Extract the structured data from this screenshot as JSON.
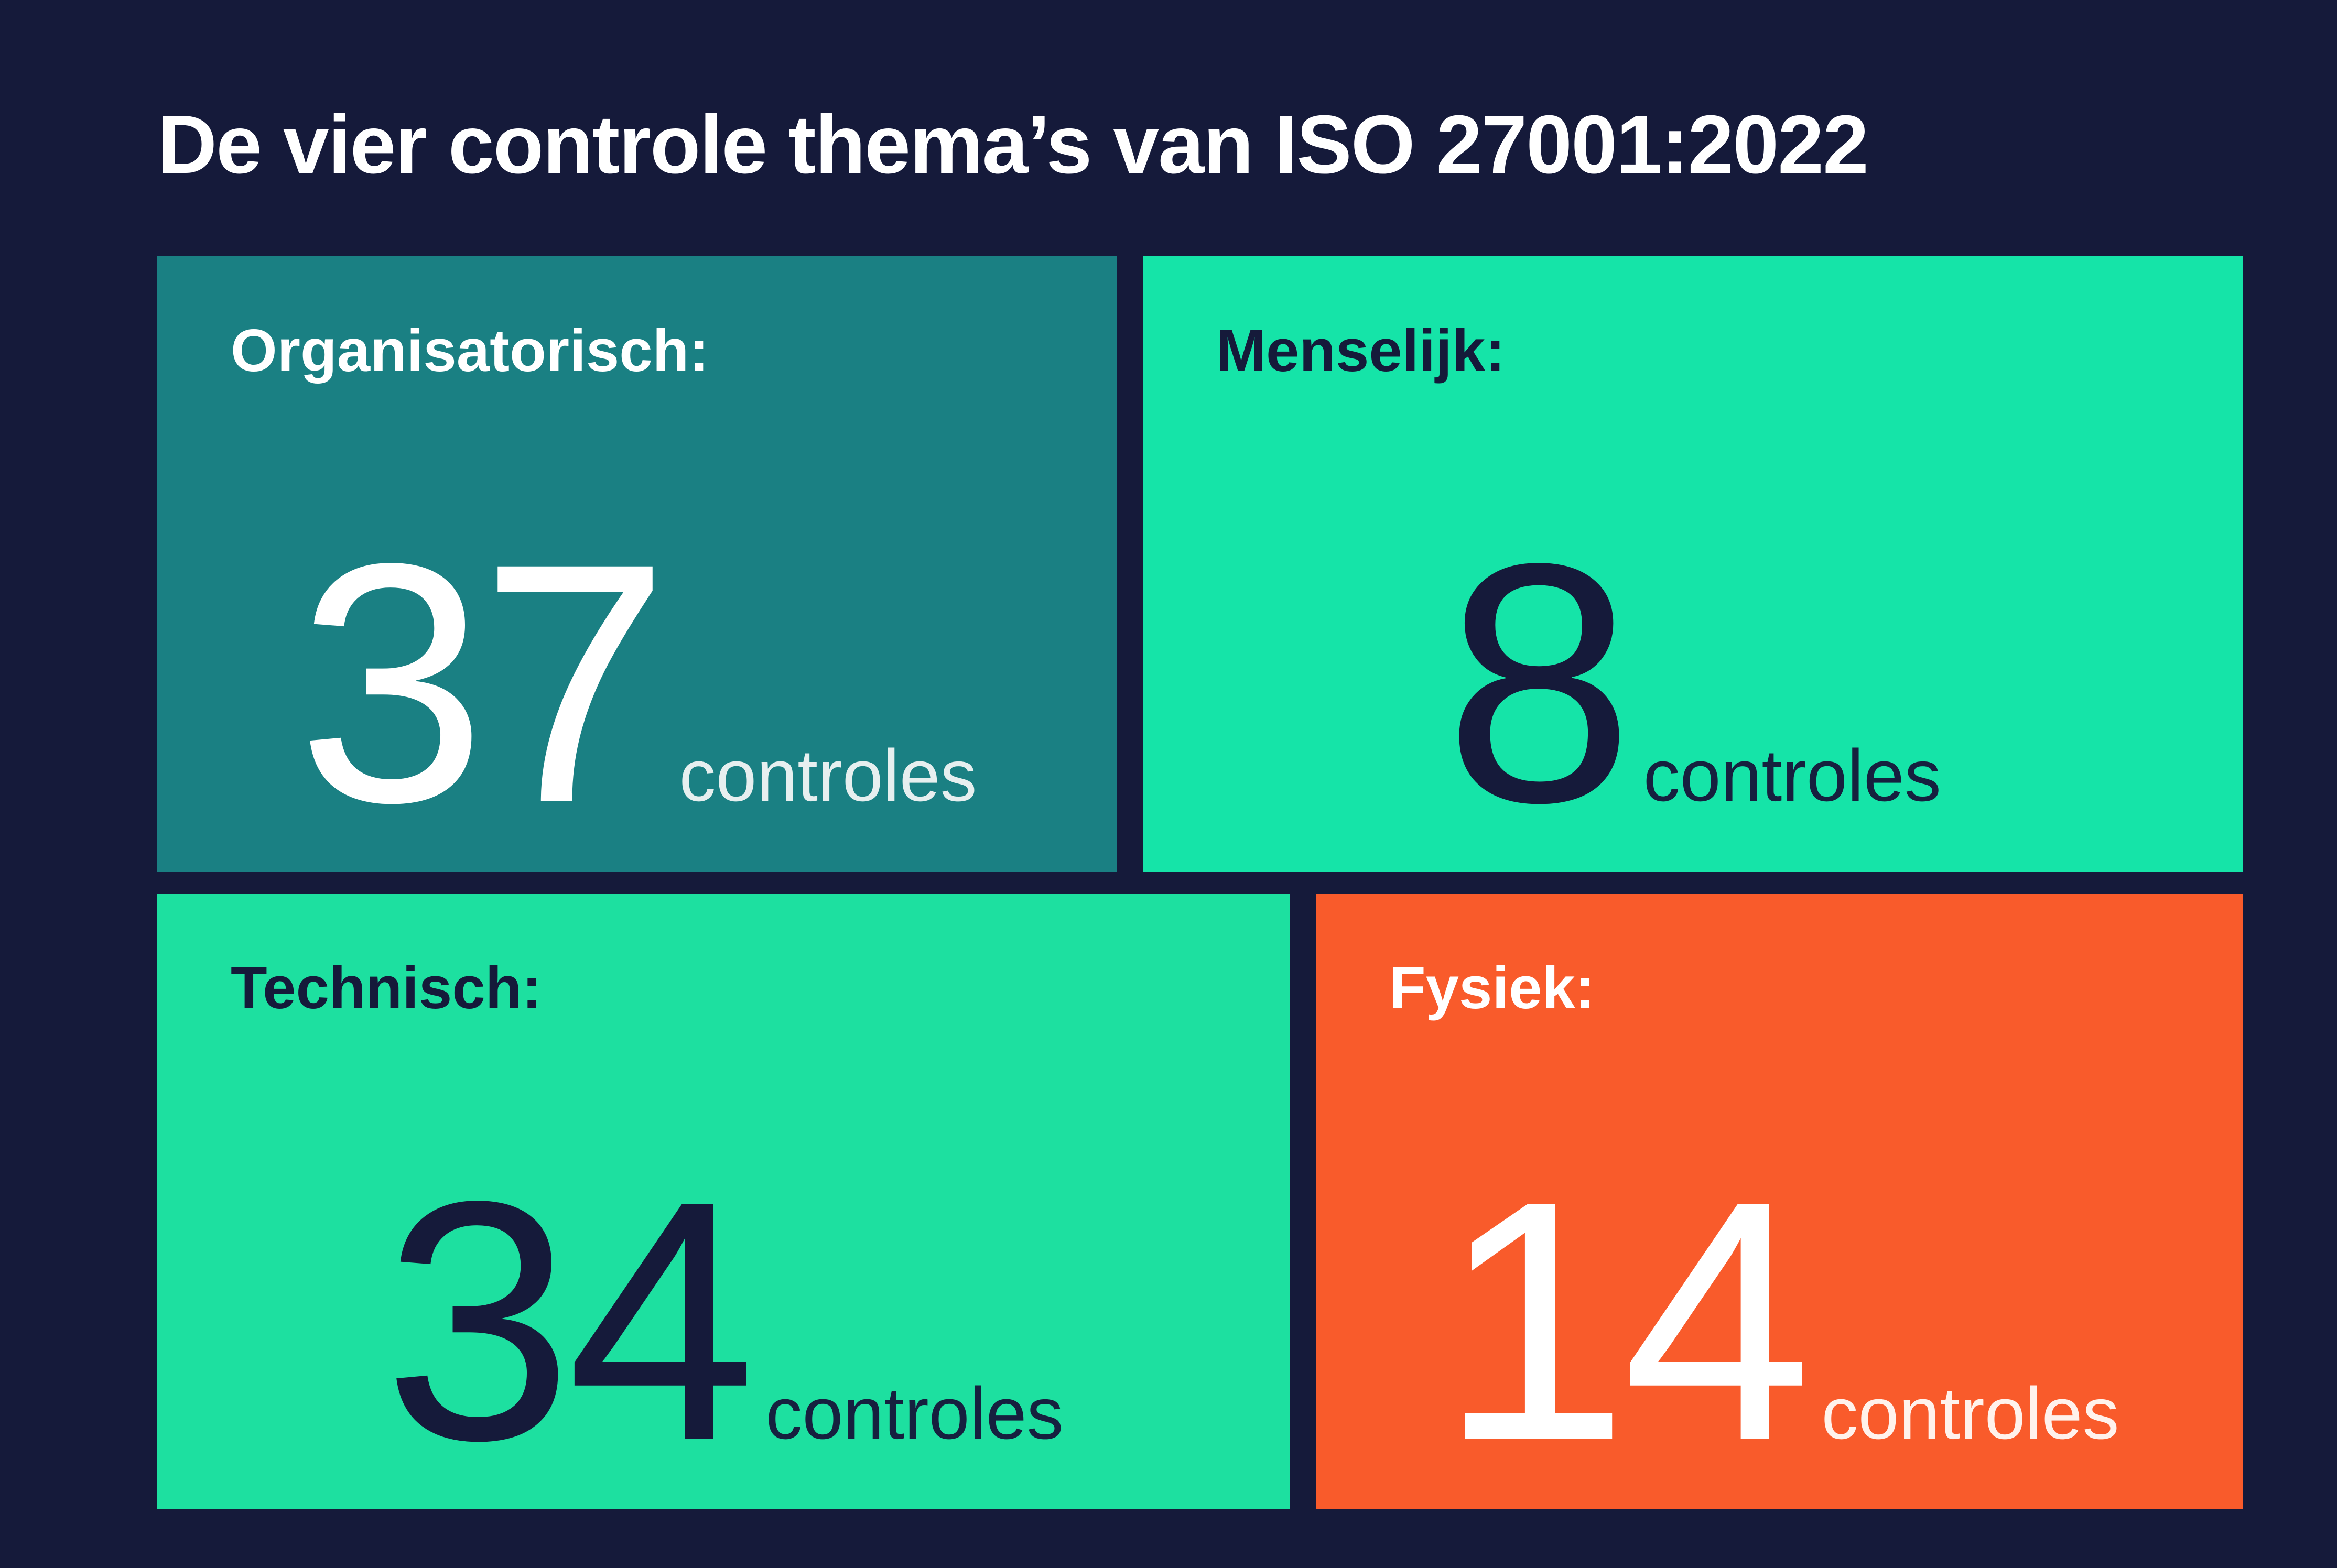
{
  "page": {
    "title": "De vier controle thema’s van ISO 27001:2022",
    "background_color": "#151A3A",
    "title_color": "#FFFFFF"
  },
  "chart_data": {
    "type": "table",
    "title": "De vier controle thema’s van ISO 27001:2022",
    "categories": [
      "Organisatorisch",
      "Menselijk",
      "Technisch",
      "Fysiek"
    ],
    "values": [
      37,
      8,
      34,
      14
    ],
    "unit": "controles",
    "legend_position": "none",
    "layout": "2x2 stat cards"
  },
  "cards": [
    {
      "label": "Organisatorisch:",
      "value": "37",
      "unit": "controles",
      "colors": {
        "bg": "#1A8083",
        "label": "#FFFFFF",
        "value": "#FFFFFF",
        "unit": "#E6EFEF"
      }
    },
    {
      "label": "Menselijk:",
      "value": "8",
      "unit": "controles",
      "colors": {
        "bg": "#15E4A8",
        "label": "#151A3A",
        "value": "#151A3A",
        "unit": "#16203F"
      }
    },
    {
      "label": "Technisch:",
      "value": "34",
      "unit": "controles",
      "colors": {
        "bg": "#1DE0A0",
        "label": "#151A3A",
        "value": "#151A3A",
        "unit": "#16203F"
      }
    },
    {
      "label": "Fysiek:",
      "value": "14",
      "unit": "controles",
      "colors": {
        "bg": "#F95B2B",
        "label": "#FFFFFF",
        "value": "#FFFFFF",
        "unit": "#FFF2EC"
      }
    }
  ]
}
